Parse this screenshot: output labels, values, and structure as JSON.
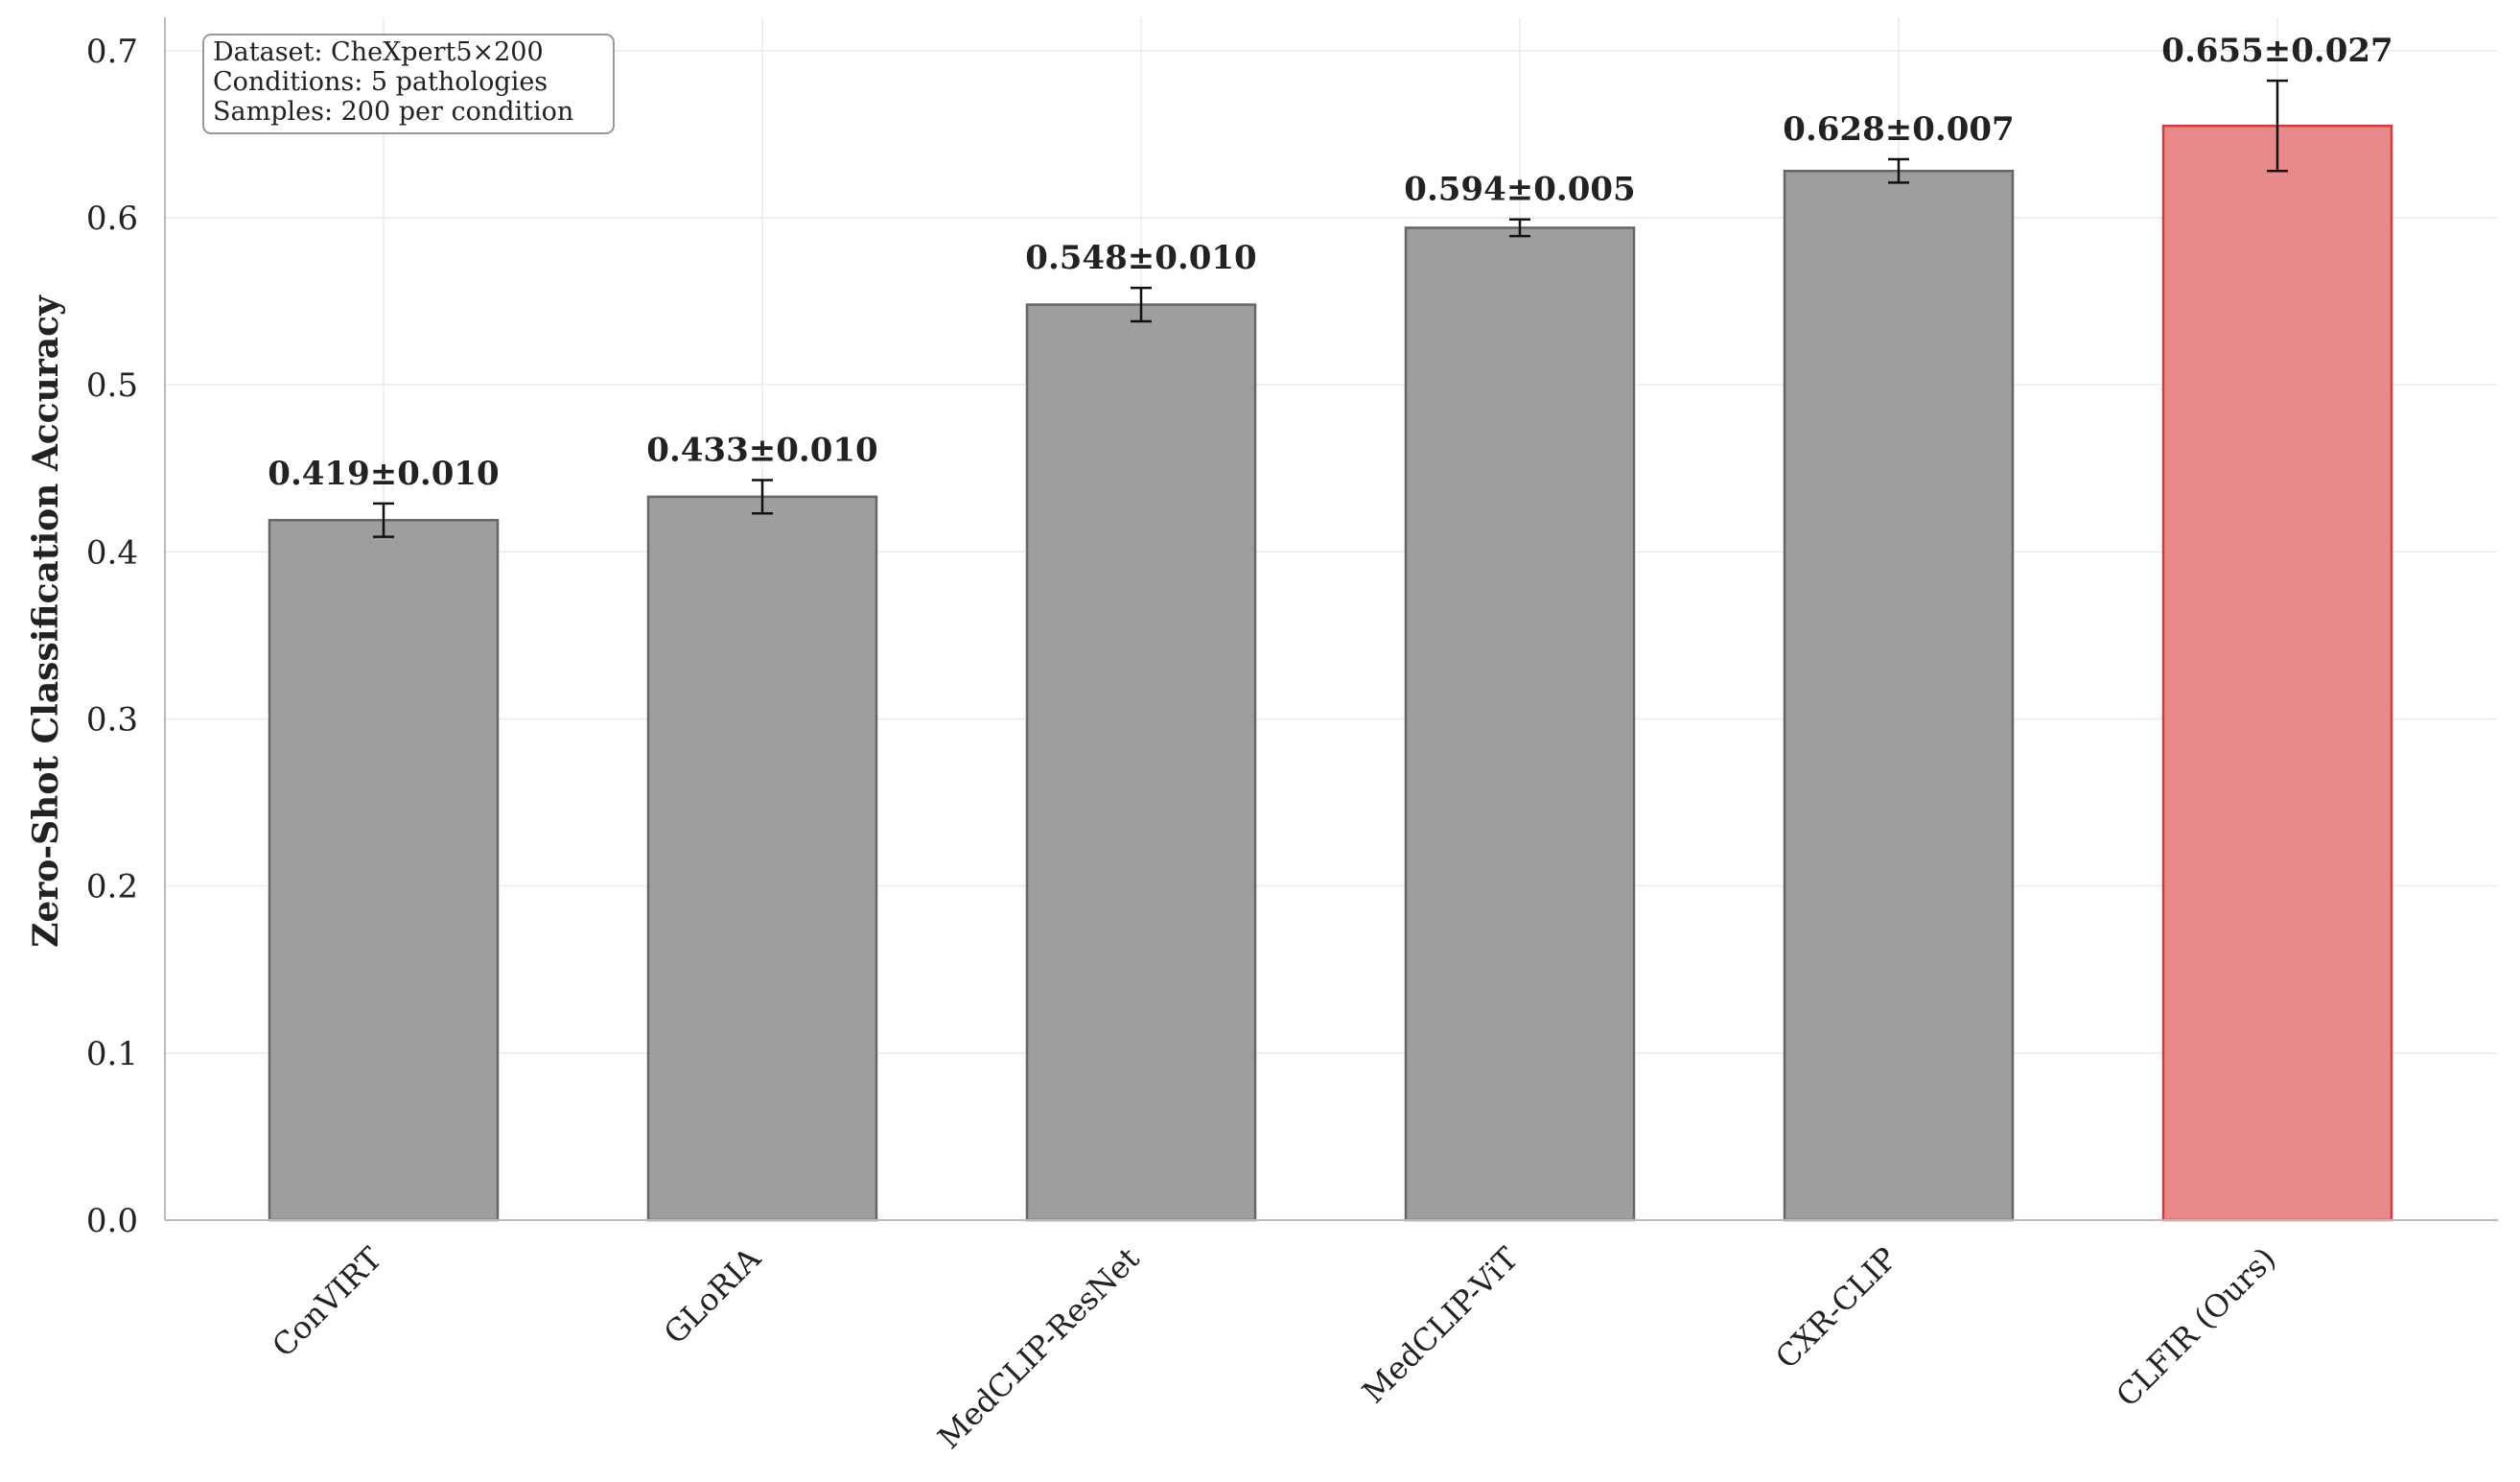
{
  "chart_data": {
    "type": "bar",
    "categories": [
      "ConVIRT",
      "GLoRIA",
      "MedCLIP-ResNet",
      "MedCLIP-ViT",
      "CXR-CLIP",
      "CLFIR (Ours)"
    ],
    "values": [
      0.419,
      0.433,
      0.548,
      0.594,
      0.628,
      0.655
    ],
    "errors": [
      0.01,
      0.01,
      0.01,
      0.005,
      0.007,
      0.027
    ],
    "value_labels": [
      "0.419±0.010",
      "0.433±0.010",
      "0.548±0.010",
      "0.594±0.005",
      "0.628±0.007",
      "0.655±0.027"
    ],
    "colors": [
      "#9e9e9e",
      "#9e9e9e",
      "#9e9e9e",
      "#9e9e9e",
      "#9e9e9e",
      "#e88a8a"
    ],
    "edge_colors": [
      "#666666",
      "#666666",
      "#666666",
      "#666666",
      "#666666",
      "#d43c3c"
    ],
    "ylabel": "Zero-Shot Classification Accuracy",
    "xlabel": "",
    "title": "",
    "ylim": [
      0,
      0.72
    ],
    "yticks": [
      "0.0",
      "0.1",
      "0.2",
      "0.3",
      "0.4",
      "0.5",
      "0.6",
      "0.7"
    ],
    "ytick_values": [
      0,
      0.1,
      0.2,
      0.3,
      0.4,
      0.5,
      0.6,
      0.7
    ],
    "grid": true,
    "annotation_box": [
      "Dataset: CheXpert5×200",
      "Conditions: 5 pathologies",
      "Samples: 200 per condition"
    ]
  }
}
